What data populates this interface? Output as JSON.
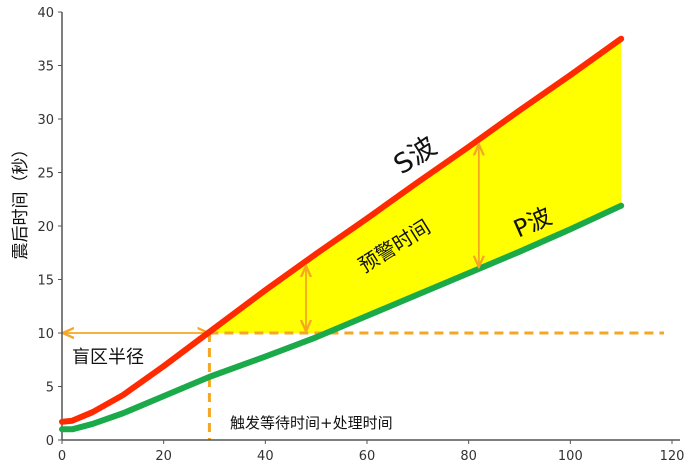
{
  "chart_data": {
    "type": "line",
    "ylabel": "震后时间（秒）",
    "xlim": [
      0,
      120
    ],
    "ylim": [
      0,
      40
    ],
    "xticks": [
      0,
      20,
      40,
      60,
      80,
      100,
      120
    ],
    "yticks": [
      0,
      5,
      10,
      15,
      20,
      25,
      30,
      35,
      40
    ],
    "grid": false,
    "series": [
      {
        "name": "S波",
        "color": "#ff2a00",
        "x": [
          0,
          2,
          6,
          12,
          20,
          29,
          40,
          50,
          60,
          70,
          80,
          90,
          100,
          110
        ],
        "y": [
          1.7,
          1.8,
          2.6,
          4.2,
          6.9,
          10.1,
          14.0,
          17.4,
          20.7,
          24.1,
          27.4,
          30.8,
          34.1,
          37.5
        ]
      },
      {
        "name": "P波",
        "color": "#1aaa4a",
        "x": [
          0,
          2,
          6,
          12,
          20,
          29,
          40,
          50,
          60,
          70,
          80,
          90,
          100,
          110
        ],
        "y": [
          1.0,
          1.0,
          1.5,
          2.5,
          4.1,
          5.9,
          7.8,
          9.6,
          11.6,
          13.6,
          15.6,
          17.6,
          19.7,
          21.9
        ]
      }
    ],
    "threshold": {
      "y": 10,
      "x_start": 29,
      "color": "#f5a623"
    },
    "blind_zone_radius_x": 29,
    "warning_fill": {
      "color": "#ffff00",
      "x_start": 29,
      "x_end": 110
    },
    "warning_arrows_x": [
      48,
      82
    ],
    "annotations": {
      "s_wave": "S波",
      "p_wave": "P波",
      "warning_time": "预警时间",
      "blind_zone": "盲区半径",
      "trigger_processing": "触发等待时间+处理时间"
    }
  }
}
